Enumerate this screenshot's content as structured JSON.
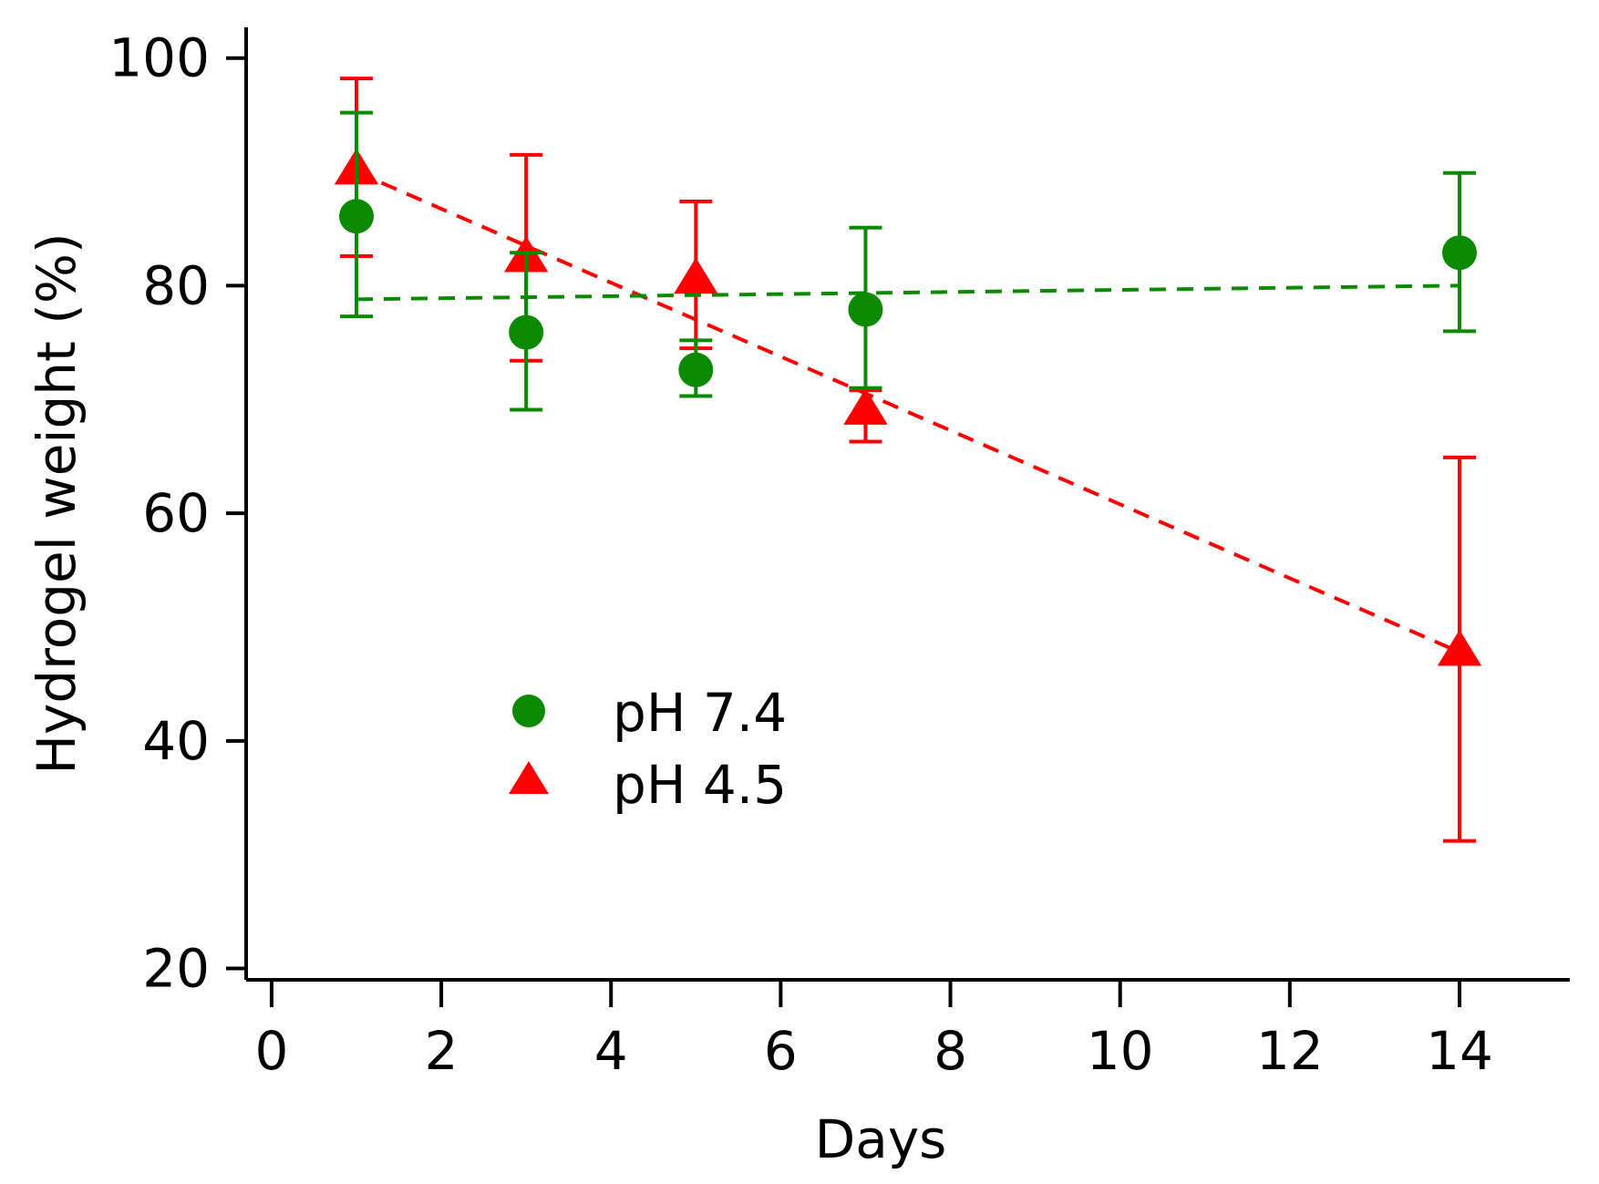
{
  "colors": {
    "ph74": "#0b8a00",
    "ph45": "#ff0000",
    "axis": "#000000"
  },
  "chart_data": {
    "type": "scatter",
    "title": "",
    "xlabel": "Days",
    "ylabel": "Hydrogel weight (%)",
    "xlim": [
      -0.3,
      15.3
    ],
    "ylim": [
      19,
      102.7
    ],
    "xticks": [
      0,
      2,
      4,
      6,
      8,
      10,
      12,
      14
    ],
    "yticks": [
      20,
      40,
      60,
      80,
      100
    ],
    "legend_position": "lower-left",
    "series": [
      {
        "name": "pH 7.4",
        "color_key": "ph74",
        "marker": "circle",
        "x": [
          1,
          3,
          5,
          7,
          14
        ],
        "y": [
          86.1,
          75.9,
          72.6,
          77.9,
          82.9
        ],
        "err_low": [
          77.3,
          69.1,
          70.3,
          71.0,
          76.0
        ],
        "err_high": [
          95.2,
          82.9,
          75.2,
          85.1,
          89.9
        ],
        "trendline": {
          "x": [
            1,
            14
          ],
          "y": [
            78.8,
            80.0
          ]
        }
      },
      {
        "name": "pH 4.5",
        "color_key": "ph45",
        "marker": "triangle",
        "x": [
          1,
          3,
          5,
          7,
          14
        ],
        "y": [
          90.3,
          82.6,
          80.7,
          69.2,
          48.0
        ],
        "err_low": [
          82.6,
          73.4,
          74.5,
          66.3,
          31.2
        ],
        "err_high": [
          98.2,
          91.5,
          87.4,
          70.8,
          64.9
        ],
        "trendline": {
          "x": [
            1,
            14
          ],
          "y": [
            90.0,
            47.8
          ]
        }
      }
    ]
  }
}
